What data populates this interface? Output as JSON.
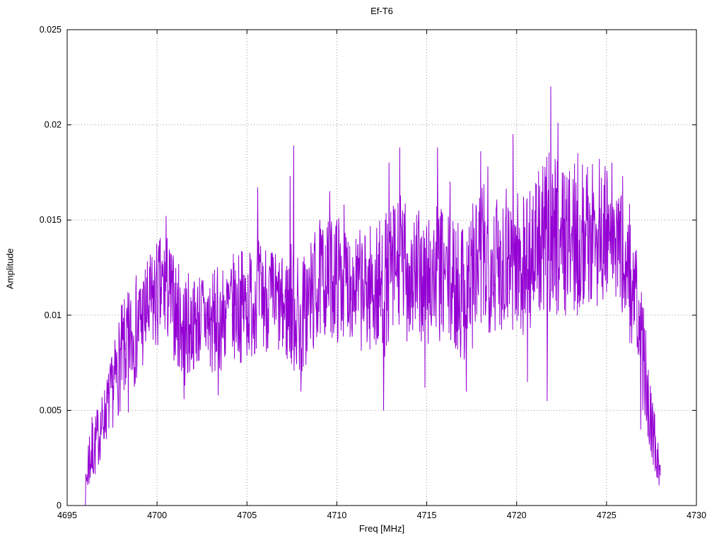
{
  "page": {
    "background": "#ffffff"
  },
  "chart_data": {
    "type": "line",
    "title": "Ef-T6",
    "xlabel": "Freq [MHz]",
    "ylabel": "Amplitude",
    "xlim": [
      4695,
      4730
    ],
    "ylim": [
      0,
      0.025
    ],
    "x_ticks": [
      4695,
      4700,
      4705,
      4710,
      4715,
      4720,
      4725,
      4730
    ],
    "x_tick_labels": [
      "4695",
      "4700",
      "4705",
      "4710",
      "4715",
      "4720",
      "4725",
      "4730"
    ],
    "y_ticks": [
      0,
      0.005,
      0.01,
      0.015,
      0.02,
      0.025
    ],
    "y_tick_labels": [
      "0",
      "0.005",
      "0.01",
      "0.015",
      "0.02",
      "0.025"
    ],
    "grid": "dotted",
    "grid_color": "#9a9a9a",
    "border_color": "#000000",
    "legend": "none",
    "line_color": "#9400d3",
    "series": [
      {
        "name": "Ef-T6",
        "description": "Noisy amplitude spectrum: rises from ~0 at 4696 MHz to a fluctuating band around 0.010-0.015, peaking 0.022 near 4722 MHz, then falling sharply to ~0.001 at 4728 MHz",
        "x_start": 4696.0,
        "x_end": 4728.0,
        "x_step": 0.02,
        "noise_seed": 7,
        "envelope": [
          [
            4696.0,
            0.0,
            0.001
          ],
          [
            4696.2,
            0.0005,
            0.0045
          ],
          [
            4696.6,
            0.0015,
            0.005
          ],
          [
            4697.0,
            0.003,
            0.006
          ],
          [
            4697.5,
            0.004,
            0.008
          ],
          [
            4698.0,
            0.005,
            0.0105
          ],
          [
            4698.5,
            0.006,
            0.0115
          ],
          [
            4699.0,
            0.0065,
            0.0125
          ],
          [
            4699.5,
            0.0075,
            0.013
          ],
          [
            4700.0,
            0.008,
            0.014
          ],
          [
            4700.5,
            0.0085,
            0.0145
          ],
          [
            4701.0,
            0.0075,
            0.013
          ],
          [
            4701.5,
            0.006,
            0.0125
          ],
          [
            4702.0,
            0.007,
            0.012
          ],
          [
            4702.5,
            0.0075,
            0.0125
          ],
          [
            4703.0,
            0.0065,
            0.0125
          ],
          [
            4703.5,
            0.007,
            0.0125
          ],
          [
            4704.0,
            0.0075,
            0.013
          ],
          [
            4704.5,
            0.0075,
            0.0135
          ],
          [
            4705.0,
            0.0075,
            0.0135
          ],
          [
            4705.5,
            0.008,
            0.014
          ],
          [
            4706.0,
            0.008,
            0.014
          ],
          [
            4706.5,
            0.008,
            0.0135
          ],
          [
            4707.0,
            0.0075,
            0.013
          ],
          [
            4707.5,
            0.007,
            0.014
          ],
          [
            4708.0,
            0.0065,
            0.013
          ],
          [
            4708.5,
            0.0075,
            0.014
          ],
          [
            4709.0,
            0.0085,
            0.015
          ],
          [
            4709.5,
            0.009,
            0.015
          ],
          [
            4710.0,
            0.0085,
            0.0155
          ],
          [
            4710.5,
            0.009,
            0.015
          ],
          [
            4711.0,
            0.0085,
            0.0145
          ],
          [
            4711.5,
            0.008,
            0.0145
          ],
          [
            4712.0,
            0.008,
            0.015
          ],
          [
            4712.5,
            0.0075,
            0.015
          ],
          [
            4713.0,
            0.0085,
            0.016
          ],
          [
            4713.5,
            0.009,
            0.0165
          ],
          [
            4714.0,
            0.0085,
            0.016
          ],
          [
            4714.5,
            0.0085,
            0.0155
          ],
          [
            4715.0,
            0.008,
            0.0155
          ],
          [
            4715.5,
            0.0085,
            0.016
          ],
          [
            4716.0,
            0.0085,
            0.0155
          ],
          [
            4716.5,
            0.008,
            0.015
          ],
          [
            4717.0,
            0.0075,
            0.0155
          ],
          [
            4717.5,
            0.008,
            0.016
          ],
          [
            4718.0,
            0.0085,
            0.017
          ],
          [
            4718.5,
            0.009,
            0.017
          ],
          [
            4719.0,
            0.009,
            0.0165
          ],
          [
            4719.5,
            0.0095,
            0.0175
          ],
          [
            4720.0,
            0.0085,
            0.017
          ],
          [
            4720.5,
            0.009,
            0.0165
          ],
          [
            4721.0,
            0.0095,
            0.0175
          ],
          [
            4721.5,
            0.0095,
            0.018
          ],
          [
            4722.0,
            0.01,
            0.019
          ],
          [
            4722.5,
            0.01,
            0.0185
          ],
          [
            4723.0,
            0.01,
            0.018
          ],
          [
            4723.5,
            0.01,
            0.018
          ],
          [
            4724.0,
            0.0105,
            0.018
          ],
          [
            4724.5,
            0.0105,
            0.018
          ],
          [
            4725.0,
            0.0105,
            0.018
          ],
          [
            4725.5,
            0.01,
            0.0175
          ],
          [
            4726.0,
            0.0095,
            0.017
          ],
          [
            4726.3,
            0.0085,
            0.016
          ],
          [
            4726.6,
            0.007,
            0.014
          ],
          [
            4727.0,
            0.005,
            0.011
          ],
          [
            4727.3,
            0.0035,
            0.008
          ],
          [
            4727.6,
            0.002,
            0.0055
          ],
          [
            4727.9,
            0.001,
            0.003
          ],
          [
            4728.0,
            0.001,
            0.0025
          ]
        ],
        "spikes": [
          [
            4698.4,
            0.0049
          ],
          [
            4700.5,
            0.0152
          ],
          [
            4701.5,
            0.0056
          ],
          [
            4703.4,
            0.0058
          ],
          [
            4705.6,
            0.0167
          ],
          [
            4707.4,
            0.0173
          ],
          [
            4707.6,
            0.0189
          ],
          [
            4708.0,
            0.006
          ],
          [
            4709.6,
            0.0165
          ],
          [
            4710.4,
            0.0158
          ],
          [
            4712.6,
            0.005
          ],
          [
            4712.9,
            0.018
          ],
          [
            4713.5,
            0.0188
          ],
          [
            4714.9,
            0.0062
          ],
          [
            4715.6,
            0.0188
          ],
          [
            4716.3,
            0.017
          ],
          [
            4717.2,
            0.006
          ],
          [
            4718.0,
            0.0186
          ],
          [
            4718.4,
            0.0178
          ],
          [
            4719.8,
            0.0195
          ],
          [
            4720.6,
            0.0065
          ],
          [
            4721.7,
            0.0055
          ],
          [
            4721.9,
            0.022
          ],
          [
            4722.3,
            0.0201
          ],
          [
            4723.4,
            0.0185
          ],
          [
            4724.6,
            0.0182
          ],
          [
            4725.3,
            0.018
          ],
          [
            4725.9,
            0.0173
          ],
          [
            4726.9,
            0.004
          ]
        ]
      }
    ]
  }
}
